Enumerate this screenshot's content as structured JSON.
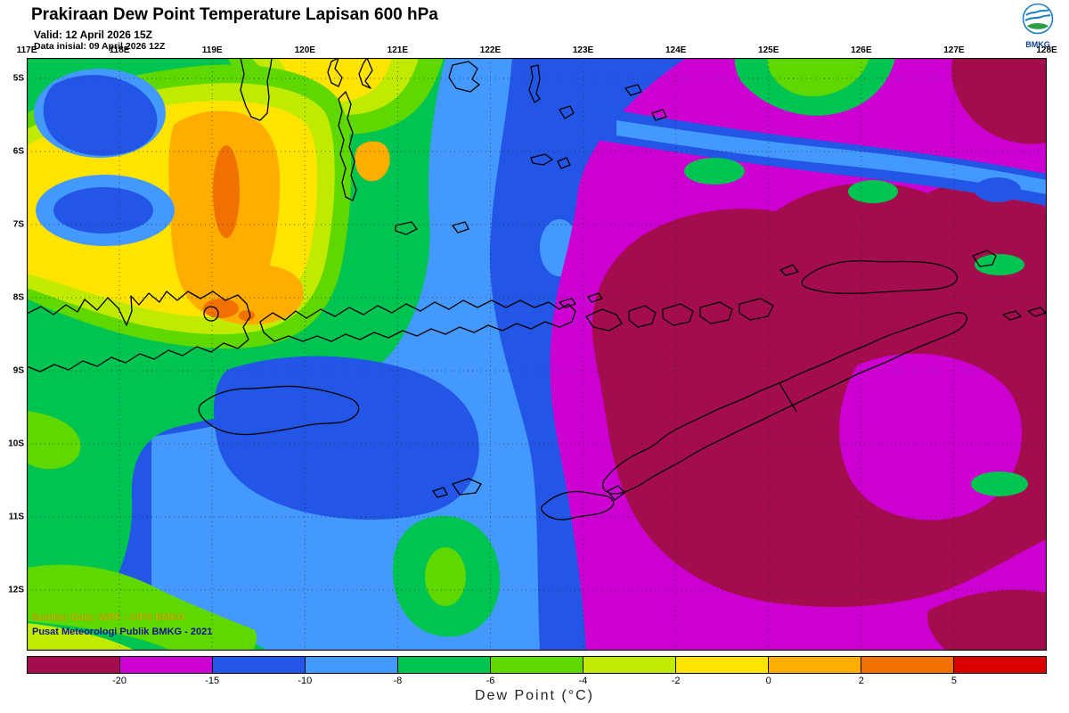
{
  "header": {
    "title": "Prakiraan Dew Point Temperature Lapisan 600 hPa",
    "valid_line": "Valid: 12 April 2026 15Z",
    "init_line": "Data inisial: 09 April 2026 12Z",
    "logo_text": "BMKG"
  },
  "map": {
    "lon_labels": [
      "117E",
      "118E",
      "119E",
      "120E",
      "121E",
      "122E",
      "123E",
      "124E",
      "125E",
      "126E",
      "127E",
      "128E"
    ],
    "lat_labels": [
      "5S",
      "6S",
      "7S",
      "8S",
      "9S",
      "10S",
      "11S",
      "12S"
    ],
    "credits_line1": "Sumber Data: WRF - CIPS BMKG",
    "credits_line2": "Pusat Meteorologi Publik BMKG - 2021"
  },
  "colorbar": {
    "caption": "Dew Point (°C)",
    "tick_labels": [
      "-20",
      "-15",
      "-10",
      "-8",
      "-6",
      "-4",
      "-2",
      "0",
      "2",
      "5"
    ],
    "segment_colors": [
      "#A30D4E",
      "#CC00D0",
      "#2356E6",
      "#4499FF",
      "#00C452",
      "#5FD800",
      "#C0EA00",
      "#FFE400",
      "#FFAE00",
      "#F07000",
      "#DB0000"
    ],
    "unit": "°C"
  }
}
